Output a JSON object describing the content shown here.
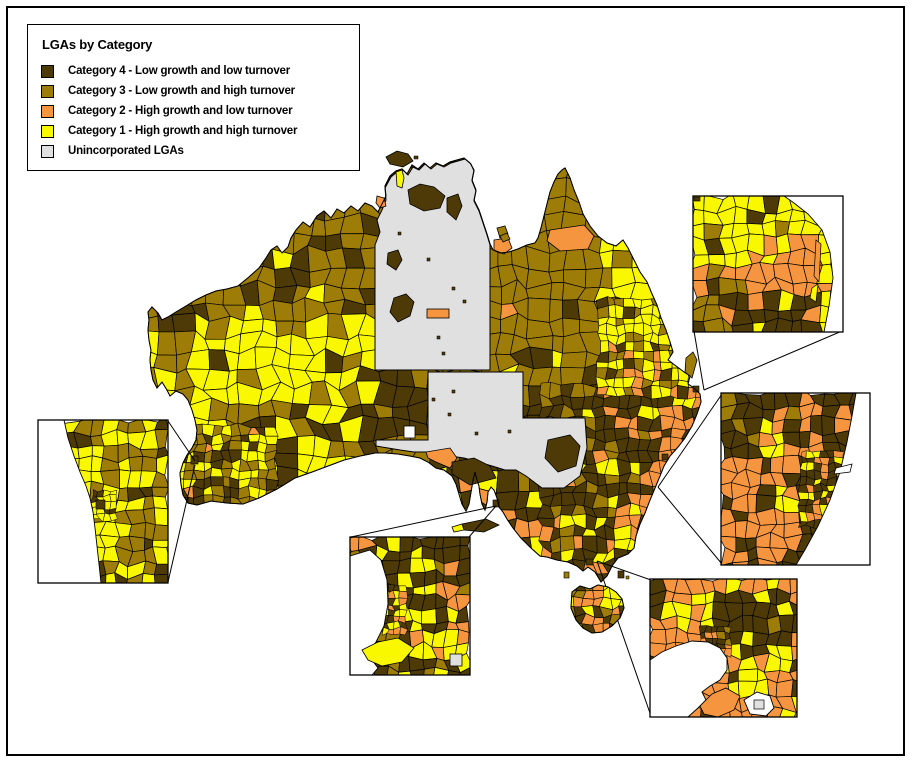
{
  "legend": {
    "title": "LGAs by Category",
    "items": [
      {
        "key": "category-4",
        "label": "Category 4 - Low growth and low turnover",
        "color": "#4d3a07"
      },
      {
        "key": "category-3",
        "label": "Category 3 - Low growth and high turnover",
        "color": "#9e7c08"
      },
      {
        "key": "category-2",
        "label": "Category 2 - High growth and low turnover",
        "color": "#f6953f"
      },
      {
        "key": "category-1",
        "label": "Category 1 - High growth and high turnover",
        "color": "#f9f800"
      },
      {
        "key": "unincorporated",
        "label": "Unincorporated LGAs",
        "color": "#e0e0e0"
      }
    ]
  },
  "map": {
    "region": "Australia",
    "ocean_color": "#ffffff",
    "boundary_color": "#000000"
  }
}
